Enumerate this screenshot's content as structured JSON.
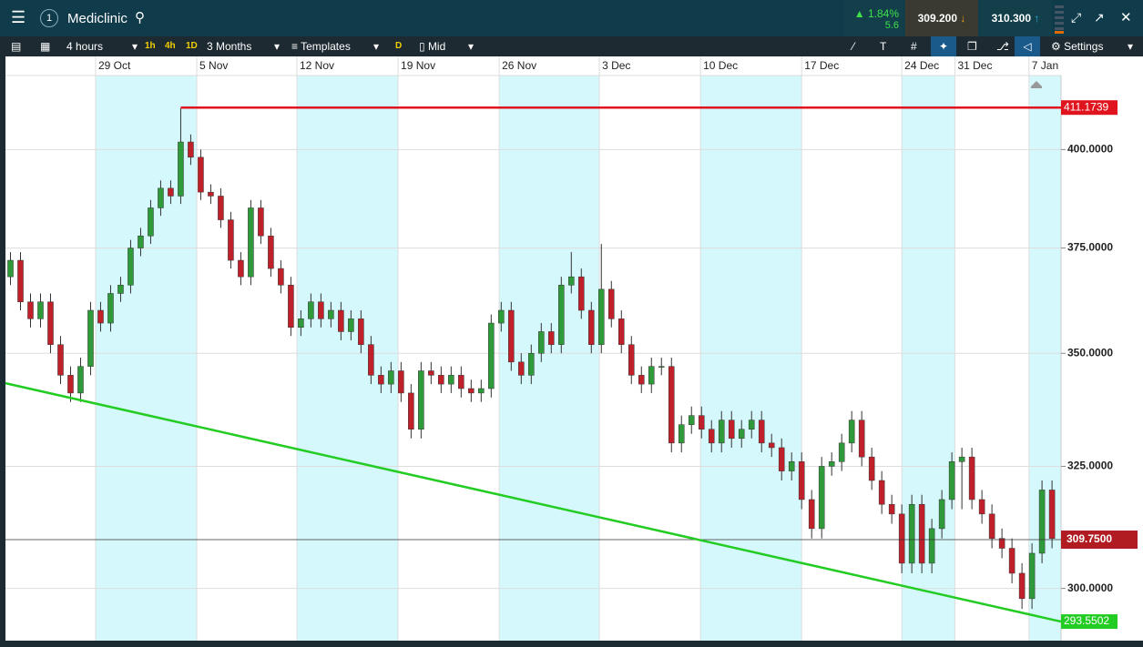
{
  "header": {
    "instrument": "Mediclinic",
    "change_pct": "1.84%",
    "change": "5.6",
    "sell": "309.200",
    "buy": "310.300"
  },
  "toolbar": {
    "interval": "4 hours",
    "quick": [
      "1h",
      "4h",
      "1D"
    ],
    "range": "3 Months",
    "templates": "Templates",
    "d": "D",
    "price": "Mid",
    "settings": "Settings"
  },
  "chart_data": {
    "type": "candlestick",
    "log_scale": true,
    "ylim": [
      290.6,
      419.9
    ],
    "yticks": [
      {
        "value": 300,
        "label": "300.0000"
      },
      {
        "value": 325,
        "label": "325.0000"
      },
      {
        "value": 350,
        "label": "350.0000"
      },
      {
        "value": 375,
        "label": "375.0000"
      },
      {
        "value": 400,
        "label": "400.0000"
      }
    ],
    "xlim": [
      -0.5,
      104.9
    ],
    "xticks": [
      {
        "value": 8.5,
        "label": "29 Oct"
      },
      {
        "value": 18.6,
        "label": "5 Nov"
      },
      {
        "value": 28.6,
        "label": "12 Nov"
      },
      {
        "value": 38.7,
        "label": "19 Nov"
      },
      {
        "value": 48.8,
        "label": "26 Nov"
      },
      {
        "value": 58.8,
        "label": "3 Dec"
      },
      {
        "value": 68.9,
        "label": "10 Dec"
      },
      {
        "value": 79,
        "label": "17 Dec"
      },
      {
        "value": 89,
        "label": "24 Dec"
      },
      {
        "value": 94.3,
        "label": "31 Dec"
      },
      {
        "value": 101.7,
        "label": "7 Jan"
      }
    ],
    "up_color": "#2e9a3a",
    "down_color": "#c0202a",
    "open": [
      368,
      372,
      362,
      358,
      362,
      352,
      345,
      341,
      347,
      360,
      357,
      364,
      366,
      375,
      378,
      385,
      390,
      388,
      402,
      398,
      389,
      388,
      382,
      372,
      368,
      385,
      378,
      370,
      366,
      356,
      358,
      362,
      358,
      360,
      355,
      358,
      352,
      345,
      343,
      346,
      341,
      333,
      346,
      345,
      343,
      345,
      342,
      341,
      342,
      357,
      360,
      348,
      345,
      350,
      355,
      352,
      366,
      368,
      360,
      352,
      365,
      358,
      352,
      345,
      343,
      347,
      347,
      330,
      334,
      336,
      333,
      330,
      335,
      331,
      333,
      335,
      330,
      329,
      324,
      326,
      318,
      312,
      325,
      326,
      330,
      335,
      327,
      322,
      317,
      315,
      305,
      317,
      305,
      312,
      318,
      326,
      327,
      318,
      315,
      310,
      308,
      303,
      298,
      307,
      320
    ],
    "high": [
      374,
      374,
      364,
      364,
      364,
      354,
      347,
      349,
      362,
      362,
      366,
      368,
      377,
      380,
      387,
      392,
      392,
      411,
      404,
      400,
      391,
      390,
      384,
      374,
      387,
      387,
      380,
      372,
      368,
      360,
      364,
      364,
      362,
      362,
      360,
      360,
      354,
      347,
      348,
      348,
      343,
      348,
      348,
      347,
      347,
      347,
      344,
      344,
      359,
      362,
      362,
      350,
      352,
      357,
      357,
      368,
      374,
      370,
      362,
      376,
      367,
      360,
      354,
      347,
      349,
      349,
      349,
      336,
      338,
      338,
      335,
      337,
      337,
      335,
      337,
      337,
      332,
      331,
      328,
      328,
      320,
      327,
      328,
      332,
      337,
      337,
      329,
      324,
      319,
      317,
      319,
      319,
      314,
      320,
      328,
      329,
      329,
      320,
      317,
      312,
      310,
      305,
      309,
      322,
      322
    ],
    "low": [
      366,
      360,
      356,
      356,
      350,
      343,
      339,
      339,
      345,
      355,
      355,
      362,
      364,
      373,
      376,
      383,
      386,
      386,
      396,
      387,
      386,
      380,
      370,
      366,
      366,
      376,
      368,
      364,
      354,
      354,
      356,
      356,
      356,
      353,
      353,
      350,
      343,
      341,
      341,
      339,
      331,
      331,
      343,
      341,
      341,
      340,
      339,
      339,
      340,
      355,
      346,
      343,
      343,
      348,
      350,
      350,
      364,
      358,
      350,
      350,
      356,
      350,
      343,
      341,
      341,
      345,
      328,
      328,
      332,
      331,
      328,
      328,
      329,
      329,
      331,
      328,
      327,
      322,
      322,
      316,
      310,
      310,
      323,
      324,
      328,
      325,
      320,
      315,
      313,
      303,
      303,
      303,
      303,
      310,
      316,
      316,
      316,
      313,
      308,
      306,
      301,
      296,
      296,
      305,
      308
    ],
    "close": [
      372,
      362,
      358,
      362,
      352,
      345,
      341,
      347,
      360,
      357,
      364,
      366,
      375,
      378,
      385,
      390,
      388,
      402,
      398,
      389,
      388,
      382,
      372,
      368,
      385,
      378,
      370,
      366,
      356,
      358,
      362,
      358,
      360,
      355,
      358,
      352,
      345,
      343,
      346,
      341,
      333,
      346,
      345,
      343,
      345,
      342,
      341,
      342,
      357,
      360,
      348,
      345,
      350,
      355,
      352,
      366,
      368,
      360,
      352,
      365,
      358,
      352,
      345,
      343,
      347,
      347,
      330,
      334,
      336,
      333,
      330,
      335,
      331,
      333,
      335,
      330,
      329,
      324,
      326,
      318,
      312,
      325,
      326,
      330,
      335,
      327,
      322,
      317,
      315,
      305,
      317,
      305,
      312,
      318,
      326,
      327,
      318,
      315,
      310,
      308,
      303,
      298,
      307,
      320,
      310
    ],
    "resistance": {
      "value": 411.1739,
      "from": 17,
      "color": "#e0141e"
    },
    "trendline": {
      "values": [
        343.2,
        293.5502
      ],
      "color": "#22cc22"
    },
    "current": {
      "value": 309.75,
      "label": "309.7500"
    }
  }
}
